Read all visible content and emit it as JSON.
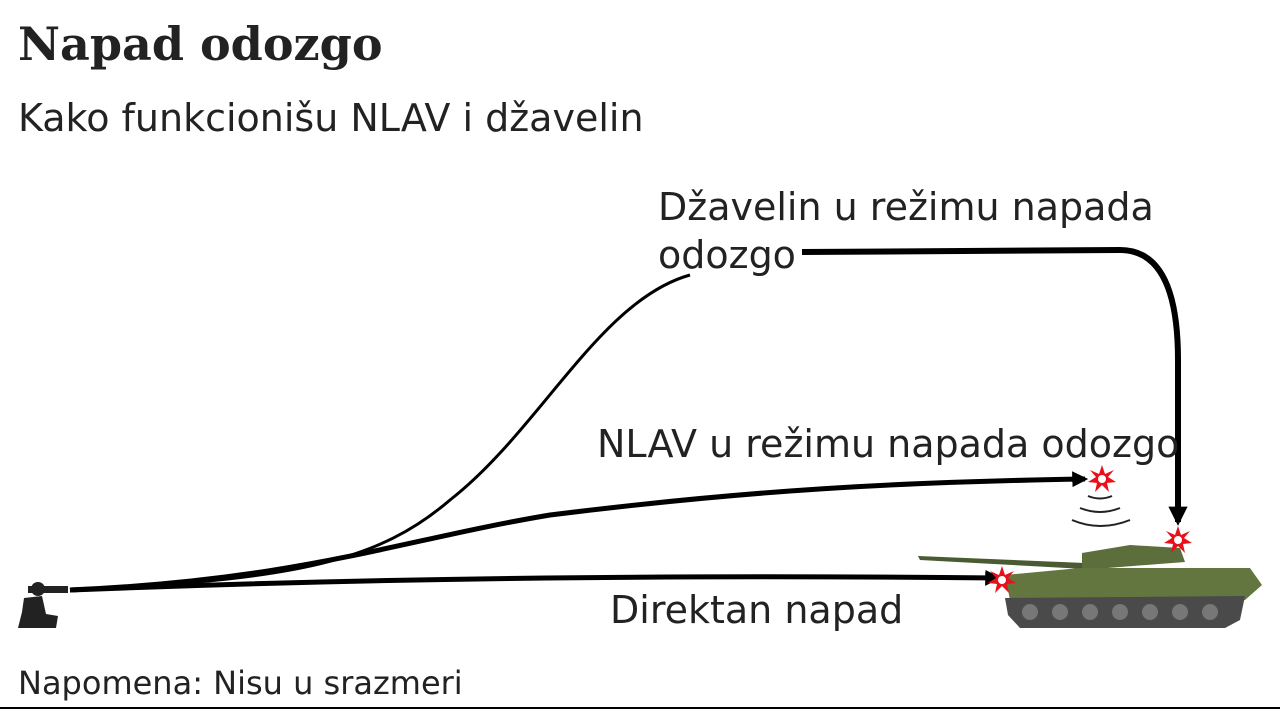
{
  "header": {
    "title": "Napad odozgo",
    "subtitle": "Kako funkcionišu NLAV i džavelin"
  },
  "paths": [
    {
      "label_lines": [
        "Džavelin u režimu napada",
        "odozgo"
      ]
    },
    {
      "label_lines": [
        "NLAV u režimu napada odozgo"
      ]
    },
    {
      "label_lines": [
        "Direktan napad"
      ]
    }
  ],
  "note": "Napomena: Nisu u srazmeri"
}
